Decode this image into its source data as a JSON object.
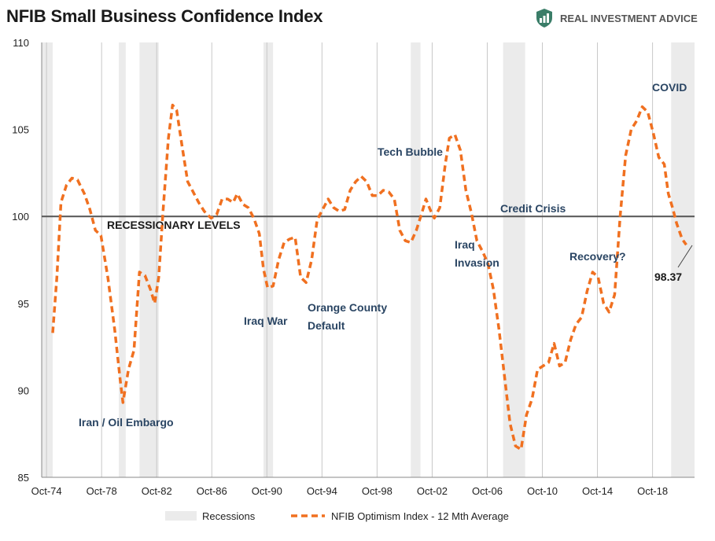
{
  "title": "NFIB Small Business Confidence Index",
  "logo": {
    "icon": "shield-chart-icon",
    "text": "REAL INVESTMENT ADVICE",
    "color": "#2f6e5a"
  },
  "chart_data": {
    "type": "line",
    "title": "NFIB Small Business Confidence Index",
    "ylim": [
      85,
      110
    ],
    "xlim": [
      1974.4,
      2021.8
    ],
    "yticks": [
      85,
      90,
      95,
      100,
      105,
      110
    ],
    "xticks": [
      {
        "label": "Oct-74",
        "x": 1974.75
      },
      {
        "label": "Oct-78",
        "x": 1978.75
      },
      {
        "label": "Oct-82",
        "x": 1982.75
      },
      {
        "label": "Oct-86",
        "x": 1986.75
      },
      {
        "label": "Oct-90",
        "x": 1990.75
      },
      {
        "label": "Oct-94",
        "x": 1994.75
      },
      {
        "label": "Oct-98",
        "x": 1998.75
      },
      {
        "label": "Oct-02",
        "x": 2002.75
      },
      {
        "label": "Oct-06",
        "x": 2006.75
      },
      {
        "label": "Oct-10",
        "x": 2010.75
      },
      {
        "label": "Oct-14",
        "x": 2014.75
      },
      {
        "label": "Oct-18",
        "x": 2018.75
      }
    ],
    "grid": "vertical",
    "reference_line": {
      "y": 100,
      "label": "RECESSIONARY LEVELS"
    },
    "recessions": [
      [
        1974.4,
        1975.2
      ],
      [
        1980.0,
        1980.5
      ],
      [
        1981.5,
        1982.9
      ],
      [
        1990.5,
        1991.2
      ],
      [
        2001.2,
        2001.9
      ],
      [
        2007.9,
        2009.5
      ],
      [
        2020.1,
        2021.8
      ]
    ],
    "series": [
      {
        "name": "NFIB Optimism Index - 12 Mth Average",
        "color": "#f07020",
        "style": "dashed",
        "points": [
          [
            1975.2,
            93.3
          ],
          [
            1975.5,
            96.5
          ],
          [
            1975.8,
            100.8
          ],
          [
            1976.2,
            101.8
          ],
          [
            1976.6,
            102.2
          ],
          [
            1977.0,
            102.1
          ],
          [
            1977.5,
            101.3
          ],
          [
            1977.9,
            100.4
          ],
          [
            1978.3,
            99.2
          ],
          [
            1978.7,
            98.9
          ],
          [
            1979.2,
            96.5
          ],
          [
            1979.7,
            93.5
          ],
          [
            1980.1,
            90.6
          ],
          [
            1980.3,
            89.3
          ],
          [
            1980.7,
            91.2
          ],
          [
            1981.1,
            92.3
          ],
          [
            1981.5,
            96.8
          ],
          [
            1981.9,
            96.6
          ],
          [
            1982.3,
            95.8
          ],
          [
            1982.6,
            95.0
          ],
          [
            1982.9,
            96.5
          ],
          [
            1983.2,
            100.2
          ],
          [
            1983.6,
            104.5
          ],
          [
            1983.9,
            106.4
          ],
          [
            1984.2,
            106.1
          ],
          [
            1984.6,
            104.0
          ],
          [
            1985.0,
            102.0
          ],
          [
            1985.4,
            101.4
          ],
          [
            1985.8,
            100.8
          ],
          [
            1986.2,
            100.3
          ],
          [
            1986.7,
            99.9
          ],
          [
            1987.1,
            100.1
          ],
          [
            1987.5,
            101.0
          ],
          [
            1987.9,
            101.0
          ],
          [
            1988.3,
            100.8
          ],
          [
            1988.6,
            101.3
          ],
          [
            1989.0,
            100.7
          ],
          [
            1989.4,
            100.5
          ],
          [
            1989.8,
            99.9
          ],
          [
            1990.2,
            99.0
          ],
          [
            1990.5,
            97.0
          ],
          [
            1990.8,
            95.9
          ],
          [
            1991.2,
            96.0
          ],
          [
            1991.6,
            97.5
          ],
          [
            1992.0,
            98.5
          ],
          [
            1992.4,
            98.7
          ],
          [
            1992.8,
            98.8
          ],
          [
            1993.2,
            96.5
          ],
          [
            1993.6,
            96.2
          ],
          [
            1994.0,
            97.5
          ],
          [
            1994.4,
            99.8
          ],
          [
            1994.8,
            100.4
          ],
          [
            1995.2,
            101.0
          ],
          [
            1995.6,
            100.5
          ],
          [
            1996.0,
            100.3
          ],
          [
            1996.4,
            100.4
          ],
          [
            1996.8,
            101.5
          ],
          [
            1997.2,
            102.0
          ],
          [
            1997.6,
            102.3
          ],
          [
            1998.0,
            102.0
          ],
          [
            1998.4,
            101.2
          ],
          [
            1998.8,
            101.2
          ],
          [
            1999.2,
            101.5
          ],
          [
            1999.6,
            101.4
          ],
          [
            2000.0,
            101.0
          ],
          [
            2000.4,
            99.2
          ],
          [
            2000.8,
            98.6
          ],
          [
            2001.2,
            98.5
          ],
          [
            2001.6,
            99.2
          ],
          [
            2002.0,
            100.2
          ],
          [
            2002.3,
            101.0
          ],
          [
            2002.6,
            100.4
          ],
          [
            2002.9,
            99.9
          ],
          [
            2003.3,
            100.5
          ],
          [
            2003.7,
            103.0
          ],
          [
            2004.0,
            104.5
          ],
          [
            2004.4,
            104.7
          ],
          [
            2004.8,
            103.8
          ],
          [
            2005.2,
            101.5
          ],
          [
            2005.6,
            100.2
          ],
          [
            2006.0,
            98.6
          ],
          [
            2006.4,
            98.0
          ],
          [
            2006.8,
            97.3
          ],
          [
            2007.2,
            95.8
          ],
          [
            2007.6,
            93.5
          ],
          [
            2008.0,
            90.8
          ],
          [
            2008.4,
            88.1
          ],
          [
            2008.8,
            86.8
          ],
          [
            2009.2,
            86.6
          ],
          [
            2009.6,
            88.6
          ],
          [
            2010.0,
            89.5
          ],
          [
            2010.4,
            91.2
          ],
          [
            2010.8,
            91.4
          ],
          [
            2011.2,
            91.6
          ],
          [
            2011.6,
            92.7
          ],
          [
            2012.0,
            91.4
          ],
          [
            2012.4,
            91.6
          ],
          [
            2012.8,
            92.9
          ],
          [
            2013.2,
            93.8
          ],
          [
            2013.6,
            94.2
          ],
          [
            2014.0,
            95.7
          ],
          [
            2014.4,
            96.8
          ],
          [
            2014.8,
            96.5
          ],
          [
            2015.2,
            95.0
          ],
          [
            2015.6,
            94.5
          ],
          [
            2016.0,
            95.5
          ],
          [
            2016.4,
            100.0
          ],
          [
            2016.8,
            103.5
          ],
          [
            2017.2,
            105.0
          ],
          [
            2017.6,
            105.5
          ],
          [
            2018.0,
            106.3
          ],
          [
            2018.4,
            106.0
          ],
          [
            2018.8,
            104.8
          ],
          [
            2019.2,
            103.4
          ],
          [
            2019.6,
            103.0
          ],
          [
            2019.9,
            101.3
          ],
          [
            2020.2,
            100.5
          ],
          [
            2020.5,
            99.6
          ],
          [
            2020.9,
            98.7
          ],
          [
            2021.2,
            98.37
          ]
        ]
      }
    ],
    "legend": [
      {
        "label": "Recessions",
        "kind": "patch",
        "color": "#ebebeb"
      },
      {
        "label": "NFIB Optimism Index - 12 Mth Average",
        "kind": "dashed-line",
        "color": "#f07020"
      }
    ],
    "legend_placement": "bottom",
    "annotations": [
      {
        "text": "Iran / Oil Embargo"
      },
      {
        "text": "Iraq War"
      },
      {
        "text": "Orange County"
      },
      {
        "text": "Default"
      },
      {
        "text": "Tech Bubble"
      },
      {
        "text": "Iraq"
      },
      {
        "text": "Invasion"
      },
      {
        "text": "Credit Crisis"
      },
      {
        "text": "Recovery?"
      },
      {
        "text": "COVID"
      },
      {
        "text": "98.37"
      }
    ]
  }
}
